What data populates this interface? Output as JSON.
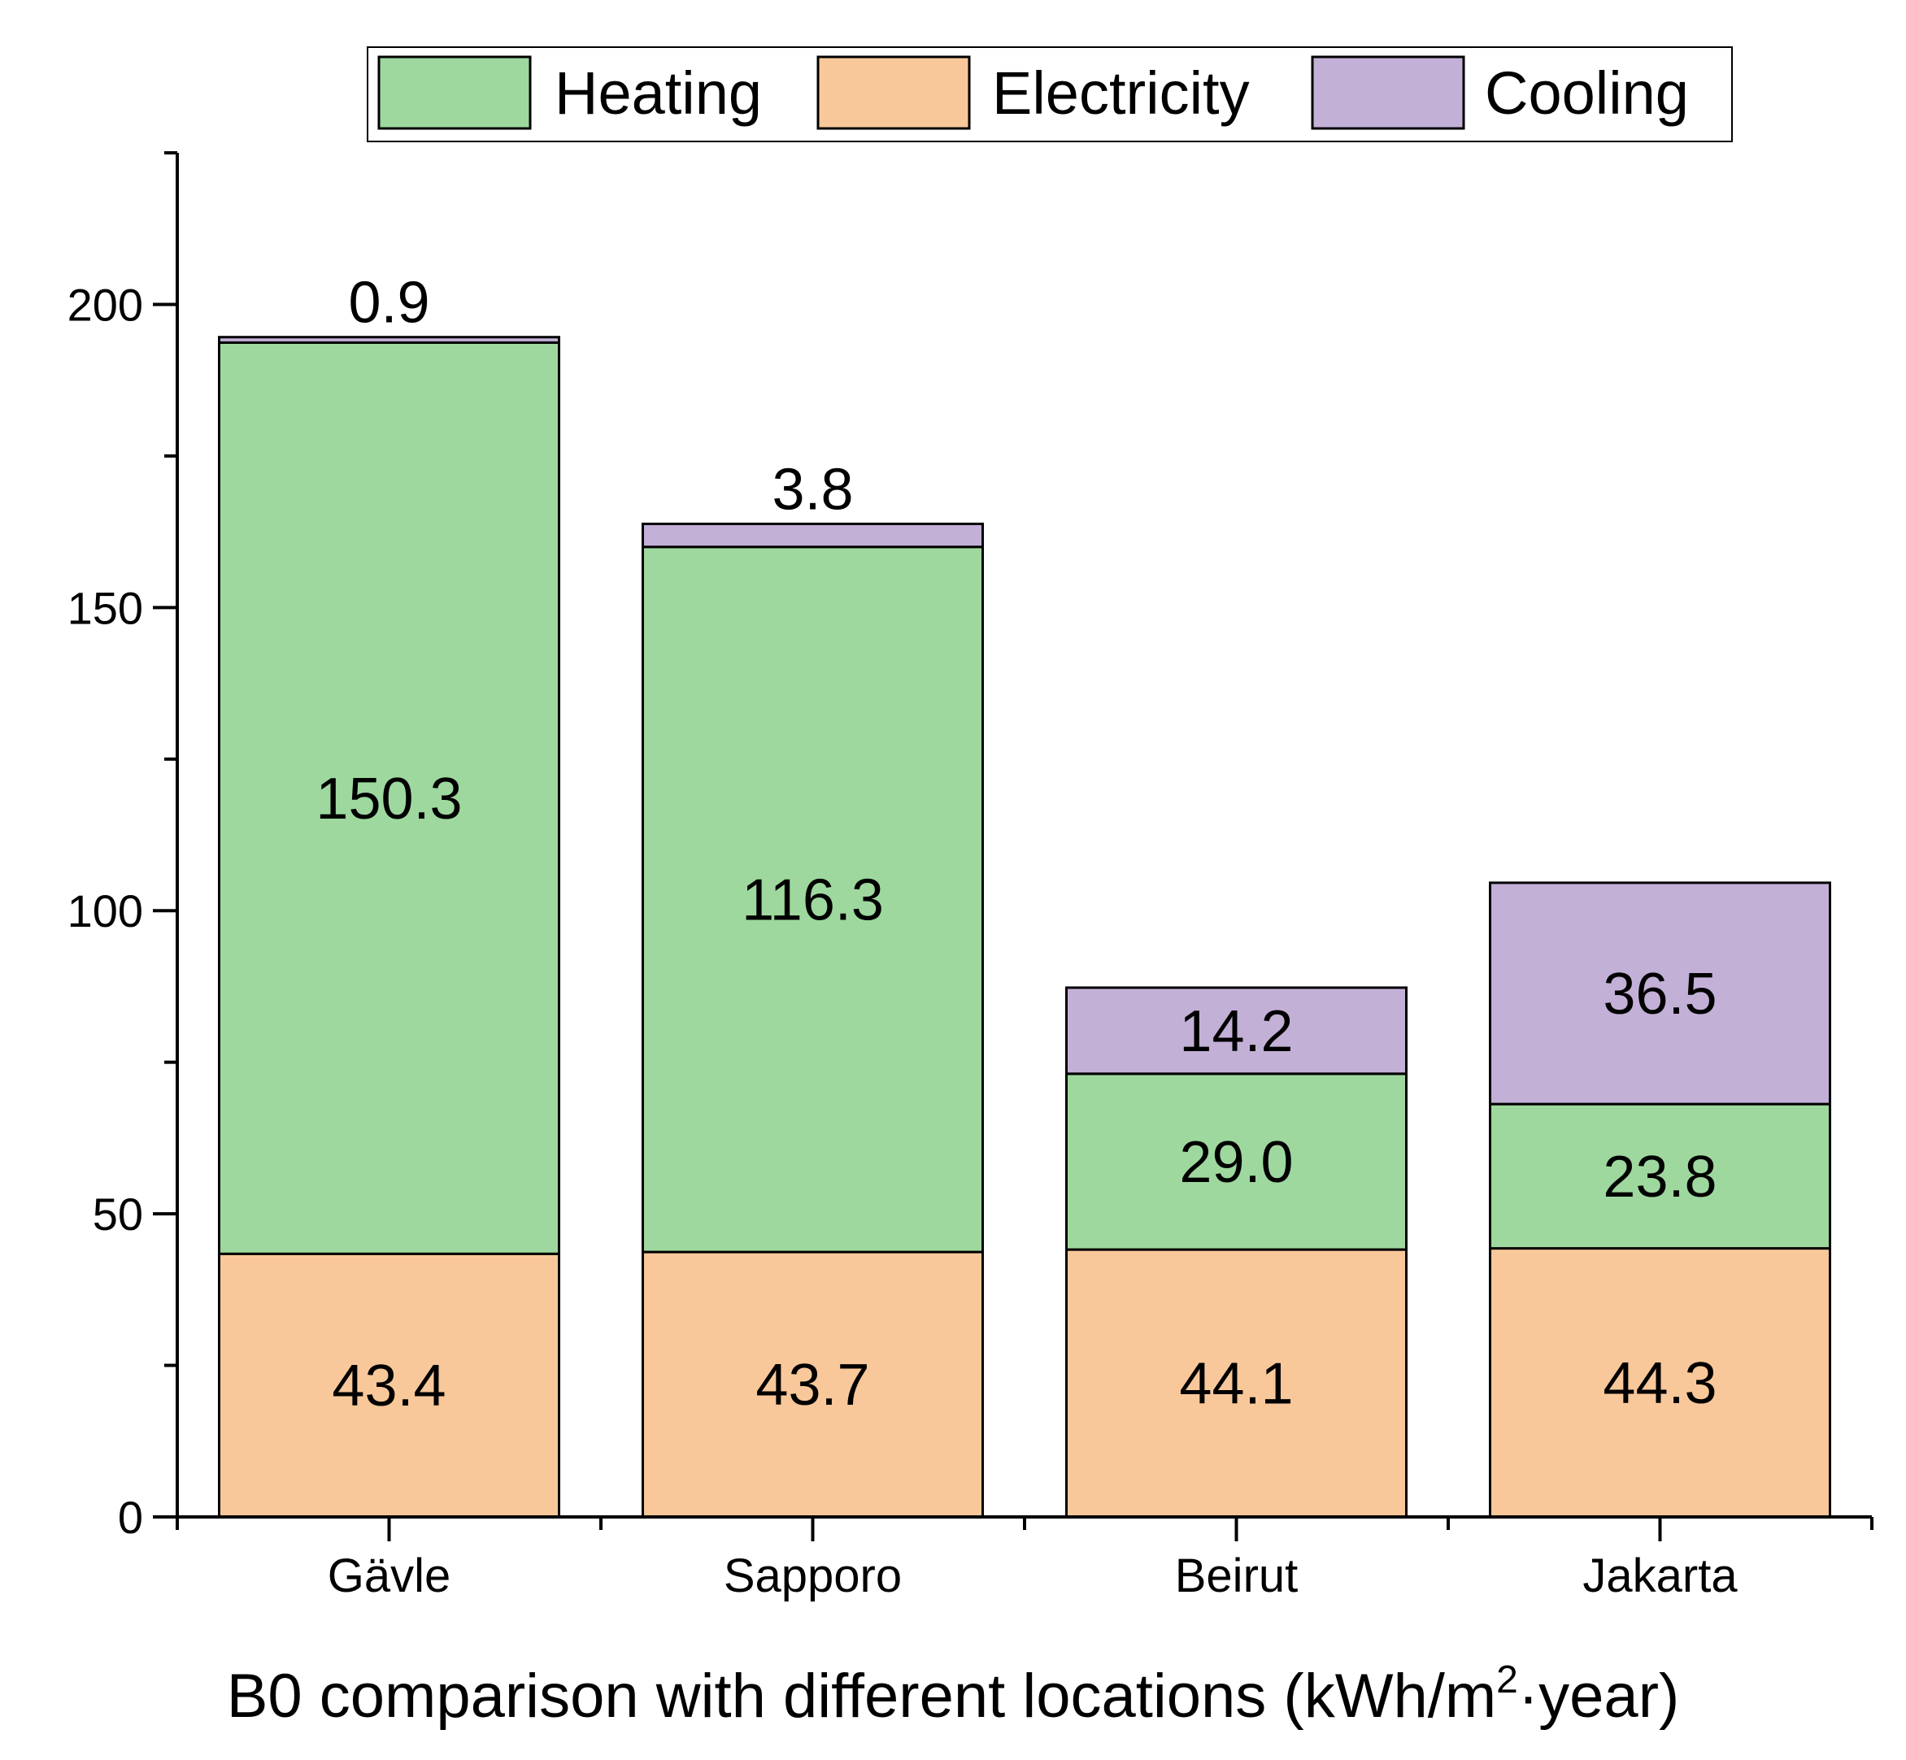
{
  "chart_data": {
    "type": "bar",
    "stacked": true,
    "title": "",
    "categories": [
      "Gävle",
      "Sapporo",
      "Beirut",
      "Jakarta"
    ],
    "series": [
      {
        "name": "Electricity",
        "values": [
          43.4,
          43.7,
          44.1,
          44.3
        ],
        "color": "#F9C89A",
        "labels": [
          "43.4",
          "43.7",
          "44.1",
          "44.3"
        ]
      },
      {
        "name": "Heating",
        "values": [
          150.3,
          116.3,
          29.0,
          23.8
        ],
        "color": "#9ED89E",
        "labels": [
          "150.3",
          "116.3",
          "29.0",
          "23.8"
        ]
      },
      {
        "name": "Cooling",
        "values": [
          0.9,
          3.8,
          14.2,
          36.5
        ],
        "color": "#C3B0D7",
        "labels": [
          "0.9",
          "3.8",
          "14.2",
          "36.5"
        ]
      }
    ],
    "legend_order": [
      "Heating",
      "Electricity",
      "Cooling"
    ],
    "xlabel": "B0 comparison with different locations (kWh/m²·year)",
    "xlabel_parts": {
      "before": "B0 comparison with different locations (kWh/m",
      "sup": "2",
      "after": "·year)"
    },
    "ylabel": "",
    "ylim": [
      0,
      225
    ],
    "yticks": [
      "0",
      "50",
      "100",
      "150",
      "200"
    ],
    "ytick_values": [
      0,
      50,
      100,
      150,
      200
    ],
    "legend_position": "top",
    "grid": false
  }
}
